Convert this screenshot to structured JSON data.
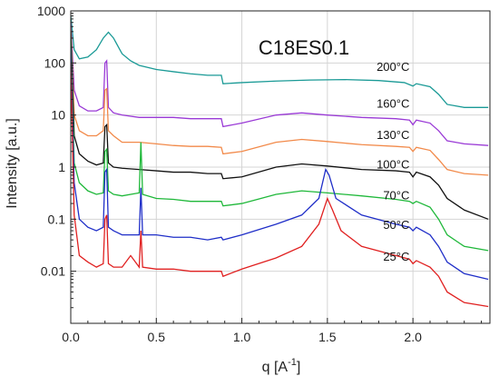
{
  "chart_data": {
    "type": "line",
    "title": "C18ES0.1",
    "xlabel": "q [A",
    "xlabel_sup": "-1",
    "xlabel_close": "]",
    "ylabel": "Intensity [a.u.]",
    "xlim": [
      0,
      2.45
    ],
    "ylim": [
      0.001,
      1000
    ],
    "yscale": "log",
    "grid": true,
    "x_ticks": [
      0.0,
      0.5,
      1.0,
      1.5,
      2.0
    ],
    "x_tick_labels": [
      "0.0",
      "0.5",
      "1.0",
      "1.5",
      "2.0"
    ],
    "y_ticks": [
      0.01,
      0.1,
      1,
      10,
      100,
      1000
    ],
    "y_tick_labels": [
      "0.01",
      "0.1",
      "1",
      "10",
      "100",
      "1000"
    ],
    "series": [
      {
        "name": "200°C",
        "color": "#1a9a96",
        "points": [
          [
            0.0,
            800
          ],
          [
            0.02,
            180
          ],
          [
            0.05,
            120
          ],
          [
            0.1,
            130
          ],
          [
            0.15,
            180
          ],
          [
            0.19,
            300
          ],
          [
            0.22,
            390
          ],
          [
            0.25,
            300
          ],
          [
            0.3,
            150
          ],
          [
            0.35,
            110
          ],
          [
            0.4,
            90
          ],
          [
            0.5,
            75
          ],
          [
            0.6,
            68
          ],
          [
            0.7,
            62
          ],
          [
            0.8,
            58
          ],
          [
            0.88,
            58
          ],
          [
            0.89,
            40
          ],
          [
            1.0,
            42
          ],
          [
            1.2,
            45
          ],
          [
            1.4,
            47
          ],
          [
            1.6,
            48
          ],
          [
            1.8,
            46
          ],
          [
            1.95,
            42
          ],
          [
            2.0,
            36
          ],
          [
            2.02,
            40
          ],
          [
            2.1,
            35
          ],
          [
            2.15,
            25
          ],
          [
            2.2,
            16
          ],
          [
            2.3,
            14
          ],
          [
            2.44,
            14
          ]
        ]
      },
      {
        "name": "160°C",
        "color": "#9a3ad6",
        "points": [
          [
            0.0,
            600
          ],
          [
            0.02,
            30
          ],
          [
            0.05,
            15
          ],
          [
            0.1,
            12
          ],
          [
            0.15,
            12
          ],
          [
            0.19,
            14
          ],
          [
            0.2,
            100
          ],
          [
            0.21,
            110
          ],
          [
            0.22,
            14
          ],
          [
            0.25,
            11
          ],
          [
            0.3,
            10
          ],
          [
            0.4,
            9
          ],
          [
            0.5,
            9
          ],
          [
            0.6,
            9
          ],
          [
            0.7,
            8.5
          ],
          [
            0.8,
            8.5
          ],
          [
            0.88,
            8.5
          ],
          [
            0.89,
            6
          ],
          [
            1.0,
            7
          ],
          [
            1.2,
            10
          ],
          [
            1.35,
            11
          ],
          [
            1.5,
            10
          ],
          [
            1.7,
            9
          ],
          [
            1.9,
            8.5
          ],
          [
            1.98,
            8
          ],
          [
            2.0,
            6.5
          ],
          [
            2.02,
            8
          ],
          [
            2.1,
            7
          ],
          [
            2.15,
            5
          ],
          [
            2.2,
            3.2
          ],
          [
            2.3,
            2.8
          ],
          [
            2.44,
            2.6
          ]
        ]
      },
      {
        "name": "130°C",
        "color": "#f28a4a",
        "points": [
          [
            0.0,
            500
          ],
          [
            0.02,
            10
          ],
          [
            0.05,
            5
          ],
          [
            0.1,
            4
          ],
          [
            0.15,
            4
          ],
          [
            0.19,
            5
          ],
          [
            0.2,
            30
          ],
          [
            0.21,
            32
          ],
          [
            0.22,
            5
          ],
          [
            0.25,
            4
          ],
          [
            0.3,
            3
          ],
          [
            0.4,
            3
          ],
          [
            0.5,
            2.8
          ],
          [
            0.6,
            2.6
          ],
          [
            0.7,
            2.5
          ],
          [
            0.8,
            2.5
          ],
          [
            0.88,
            2.4
          ],
          [
            0.89,
            1.8
          ],
          [
            1.0,
            2.0
          ],
          [
            1.2,
            3.0
          ],
          [
            1.35,
            3.4
          ],
          [
            1.5,
            3.1
          ],
          [
            1.7,
            2.7
          ],
          [
            1.9,
            2.5
          ],
          [
            1.98,
            2.4
          ],
          [
            2.0,
            2.0
          ],
          [
            2.02,
            2.4
          ],
          [
            2.1,
            2.1
          ],
          [
            2.15,
            1.4
          ],
          [
            2.2,
            0.9
          ],
          [
            2.3,
            0.75
          ],
          [
            2.44,
            0.7
          ]
        ]
      },
      {
        "name": "100°C",
        "color": "#111111",
        "points": [
          [
            0.0,
            400
          ],
          [
            0.02,
            4
          ],
          [
            0.05,
            1.8
          ],
          [
            0.1,
            1.3
          ],
          [
            0.15,
            1.1
          ],
          [
            0.19,
            1.2
          ],
          [
            0.2,
            6
          ],
          [
            0.21,
            6.5
          ],
          [
            0.22,
            1.2
          ],
          [
            0.25,
            1.0
          ],
          [
            0.3,
            0.95
          ],
          [
            0.4,
            0.9
          ],
          [
            0.5,
            0.85
          ],
          [
            0.6,
            0.8
          ],
          [
            0.7,
            0.8
          ],
          [
            0.8,
            0.75
          ],
          [
            0.88,
            0.75
          ],
          [
            0.89,
            0.6
          ],
          [
            1.0,
            0.65
          ],
          [
            1.2,
            1.0
          ],
          [
            1.35,
            1.15
          ],
          [
            1.5,
            1.05
          ],
          [
            1.7,
            0.9
          ],
          [
            1.9,
            0.85
          ],
          [
            1.98,
            0.8
          ],
          [
            2.0,
            0.65
          ],
          [
            2.02,
            0.8
          ],
          [
            2.1,
            0.65
          ],
          [
            2.15,
            0.45
          ],
          [
            2.2,
            0.25
          ],
          [
            2.3,
            0.15
          ],
          [
            2.44,
            0.1
          ]
        ]
      },
      {
        "name": "70°C",
        "color": "#1fb83a",
        "points": [
          [
            0.0,
            300
          ],
          [
            0.02,
            1.2
          ],
          [
            0.05,
            0.5
          ],
          [
            0.1,
            0.35
          ],
          [
            0.15,
            0.3
          ],
          [
            0.19,
            0.32
          ],
          [
            0.2,
            2.0
          ],
          [
            0.21,
            2.2
          ],
          [
            0.22,
            0.35
          ],
          [
            0.25,
            0.3
          ],
          [
            0.3,
            0.28
          ],
          [
            0.4,
            0.32
          ],
          [
            0.41,
            3.0
          ],
          [
            0.42,
            0.3
          ],
          [
            0.5,
            0.25
          ],
          [
            0.6,
            0.24
          ],
          [
            0.7,
            0.22
          ],
          [
            0.8,
            0.22
          ],
          [
            0.88,
            0.22
          ],
          [
            0.89,
            0.18
          ],
          [
            1.0,
            0.2
          ],
          [
            1.2,
            0.3
          ],
          [
            1.35,
            0.35
          ],
          [
            1.5,
            0.32
          ],
          [
            1.7,
            0.28
          ],
          [
            1.9,
            0.24
          ],
          [
            1.98,
            0.22
          ],
          [
            2.0,
            0.2
          ],
          [
            2.02,
            0.22
          ],
          [
            2.1,
            0.17
          ],
          [
            2.15,
            0.1
          ],
          [
            2.2,
            0.05
          ],
          [
            2.3,
            0.03
          ],
          [
            2.44,
            0.025
          ]
        ]
      },
      {
        "name": "50°C",
        "color": "#1f2ec8",
        "points": [
          [
            0.0,
            200
          ],
          [
            0.02,
            0.5
          ],
          [
            0.05,
            0.1
          ],
          [
            0.1,
            0.07
          ],
          [
            0.15,
            0.06
          ],
          [
            0.19,
            0.07
          ],
          [
            0.2,
            0.8
          ],
          [
            0.21,
            0.9
          ],
          [
            0.22,
            0.07
          ],
          [
            0.25,
            0.06
          ],
          [
            0.3,
            0.05
          ],
          [
            0.4,
            0.05
          ],
          [
            0.41,
            0.4
          ],
          [
            0.42,
            0.05
          ],
          [
            0.5,
            0.05
          ],
          [
            0.6,
            0.045
          ],
          [
            0.7,
            0.045
          ],
          [
            0.8,
            0.04
          ],
          [
            0.88,
            0.045
          ],
          [
            0.89,
            0.04
          ],
          [
            1.0,
            0.05
          ],
          [
            1.2,
            0.08
          ],
          [
            1.35,
            0.12
          ],
          [
            1.45,
            0.25
          ],
          [
            1.49,
            0.9
          ],
          [
            1.51,
            0.7
          ],
          [
            1.55,
            0.25
          ],
          [
            1.7,
            0.12
          ],
          [
            1.9,
            0.08
          ],
          [
            1.98,
            0.07
          ],
          [
            2.0,
            0.06
          ],
          [
            2.02,
            0.07
          ],
          [
            2.1,
            0.05
          ],
          [
            2.15,
            0.03
          ],
          [
            2.2,
            0.015
          ],
          [
            2.3,
            0.009
          ],
          [
            2.44,
            0.007
          ]
        ]
      },
      {
        "name": "25°C",
        "color": "#e02020",
        "points": [
          [
            0.0,
            100
          ],
          [
            0.02,
            0.12
          ],
          [
            0.05,
            0.02
          ],
          [
            0.1,
            0.015
          ],
          [
            0.15,
            0.012
          ],
          [
            0.19,
            0.014
          ],
          [
            0.2,
            0.1
          ],
          [
            0.21,
            0.12
          ],
          [
            0.22,
            0.014
          ],
          [
            0.25,
            0.012
          ],
          [
            0.3,
            0.012
          ],
          [
            0.35,
            0.02
          ],
          [
            0.4,
            0.012
          ],
          [
            0.41,
            0.06
          ],
          [
            0.42,
            0.012
          ],
          [
            0.5,
            0.011
          ],
          [
            0.6,
            0.011
          ],
          [
            0.7,
            0.01
          ],
          [
            0.8,
            0.01
          ],
          [
            0.88,
            0.01
          ],
          [
            0.89,
            0.008
          ],
          [
            1.0,
            0.011
          ],
          [
            1.2,
            0.018
          ],
          [
            1.35,
            0.03
          ],
          [
            1.45,
            0.08
          ],
          [
            1.5,
            0.25
          ],
          [
            1.53,
            0.15
          ],
          [
            1.58,
            0.06
          ],
          [
            1.7,
            0.03
          ],
          [
            1.9,
            0.02
          ],
          [
            1.98,
            0.017
          ],
          [
            2.0,
            0.014
          ],
          [
            2.02,
            0.016
          ],
          [
            2.1,
            0.012
          ],
          [
            2.15,
            0.008
          ],
          [
            2.2,
            0.004
          ],
          [
            2.3,
            0.0025
          ],
          [
            2.44,
            0.0021
          ]
        ]
      }
    ],
    "series_label_values": [
      {
        "x": 1.98,
        "y": 70
      },
      {
        "x": 1.98,
        "y": 14
      },
      {
        "x": 1.98,
        "y": 3.5
      },
      {
        "x": 1.98,
        "y": 0.95
      },
      {
        "x": 1.98,
        "y": 0.24
      },
      {
        "x": 1.98,
        "y": 0.065
      },
      {
        "x": 1.98,
        "y": 0.016
      }
    ]
  }
}
